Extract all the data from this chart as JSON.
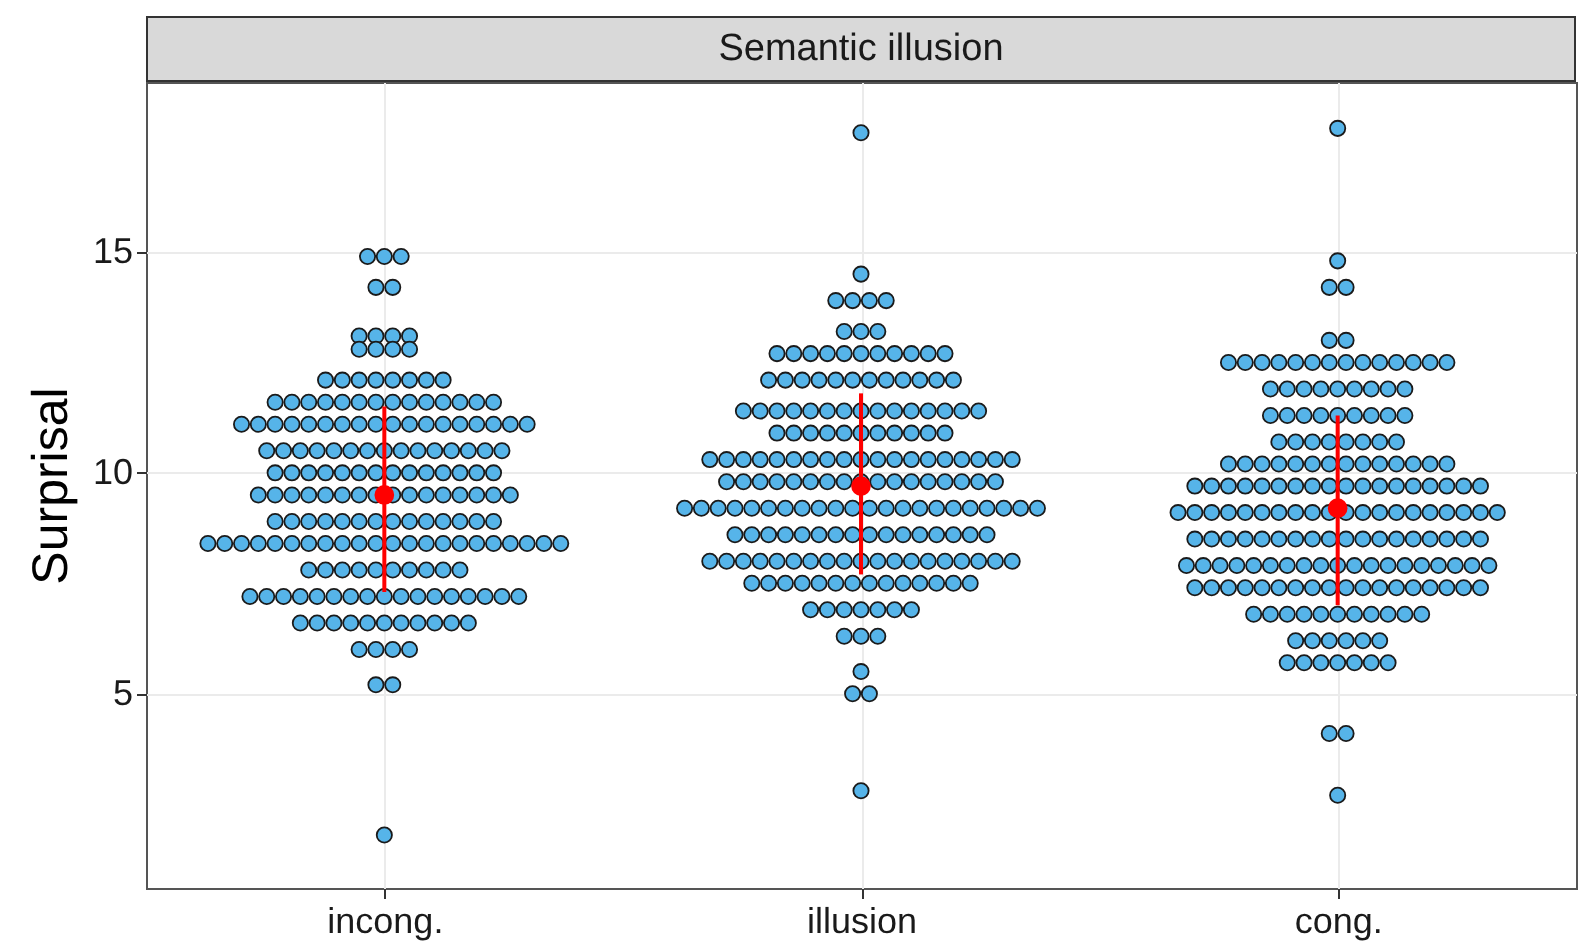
{
  "chart_data": {
    "type": "scatter",
    "title": "Semantic illusion",
    "ylabel": "Surprisal",
    "categories": [
      "incong.",
      "illusion",
      "cong."
    ],
    "ylim": [
      0.6,
      18.85
    ],
    "yticks": [
      5,
      10,
      15
    ],
    "grid": true,
    "marker": "circle",
    "series": [
      {
        "color": "#56b4e9",
        "x": [
          "incong.",
          "incong.",
          "incong.",
          "incong.",
          "incong.",
          "incong.",
          "incong.",
          "incong.",
          "incong.",
          "incong.",
          "incong.",
          "incong.",
          "incong.",
          "incong.",
          "incong.",
          "incong.",
          "incong.",
          "incong.",
          "incong.",
          "incong.",
          "incong.",
          "incong.",
          "incong.",
          "incong.",
          "incong.",
          "incong.",
          "incong.",
          "incong.",
          "incong.",
          "incong.",
          "incong.",
          "incong.",
          "incong.",
          "incong.",
          "incong.",
          "incong.",
          "incong.",
          "incong.",
          "incong.",
          "incong.",
          "incong.",
          "incong.",
          "incong.",
          "incong.",
          "incong.",
          "incong.",
          "incong.",
          "incong.",
          "incong.",
          "incong.",
          "incong.",
          "incong.",
          "incong.",
          "incong.",
          "incong.",
          "incong.",
          "incong.",
          "incong.",
          "incong.",
          "incong.",
          "incong.",
          "incong.",
          "incong.",
          "incong.",
          "incong.",
          "incong.",
          "incong.",
          "incong.",
          "incong.",
          "incong.",
          "incong.",
          "incong.",
          "incong.",
          "incong.",
          "incong.",
          "incong.",
          "incong.",
          "incong.",
          "incong.",
          "incong.",
          "incong.",
          "incong.",
          "incong.",
          "incong.",
          "incong.",
          "incong.",
          "incong.",
          "incong.",
          "incong.",
          "incong.",
          "incong.",
          "incong.",
          "incong.",
          "incong.",
          "incong.",
          "incong.",
          "incong.",
          "incong.",
          "incong.",
          "incong.",
          "incong.",
          "incong.",
          "incong.",
          "incong.",
          "incong.",
          "incong.",
          "incong.",
          "incong.",
          "incong.",
          "incong.",
          "incong.",
          "incong.",
          "incong.",
          "incong.",
          "incong.",
          "incong.",
          "incong.",
          "incong.",
          "incong.",
          "incong.",
          "incong.",
          "incong.",
          "incong.",
          "incong.",
          "incong.",
          "incong.",
          "incong.",
          "incong.",
          "incong.",
          "incong.",
          "incong.",
          "incong.",
          "incong.",
          "incong.",
          "incong.",
          "incong.",
          "incong.",
          "incong.",
          "incong.",
          "incong.",
          "incong.",
          "incong.",
          "incong.",
          "incong.",
          "incong.",
          "incong.",
          "incong.",
          "incong.",
          "incong.",
          "incong.",
          "incong.",
          "incong.",
          "incong.",
          "incong.",
          "incong.",
          "incong.",
          "incong.",
          "incong.",
          "incong.",
          "incong.",
          "incong.",
          "incong.",
          "incong.",
          "incong.",
          "incong.",
          "incong.",
          "incong.",
          "incong.",
          "incong.",
          "incong.",
          "incong.",
          "incong.",
          "incong.",
          "incong.",
          "incong.",
          "incong.",
          "incong.",
          "incong.",
          "incong."
        ],
        "values": [
          14.9,
          14.9,
          14.9,
          14.2,
          14.2,
          13.1,
          13.1,
          13.1,
          13.1,
          12.8,
          12.8,
          12.8,
          12.8,
          12.1,
          12.1,
          12.1,
          12.1,
          12.1,
          12.1,
          12.1,
          12.1,
          11.6,
          11.6,
          11.6,
          11.6,
          11.6,
          11.6,
          11.6,
          11.6,
          11.6,
          11.6,
          11.6,
          11.6,
          11.6,
          11.6,
          11.1,
          11.1,
          11.1,
          11.1,
          11.1,
          11.1,
          11.1,
          11.1,
          11.1,
          11.1,
          11.1,
          11.1,
          11.1,
          11.1,
          11.1,
          11.1,
          11.1,
          11.1,
          10.5,
          10.5,
          10.5,
          10.5,
          10.5,
          10.5,
          10.5,
          10.5,
          10.5,
          10.5,
          10.5,
          10.5,
          10.5,
          10.5,
          10.5,
          10.0,
          10.0,
          10.0,
          10.0,
          10.0,
          10.0,
          10.0,
          10.0,
          10.0,
          10.0,
          10.0,
          10.0,
          10.0,
          10.0,
          9.5,
          9.5,
          9.5,
          9.5,
          9.5,
          9.5,
          9.5,
          9.5,
          9.5,
          9.5,
          9.5,
          9.5,
          9.5,
          9.5,
          9.5,
          9.5,
          8.9,
          8.9,
          8.9,
          8.9,
          8.9,
          8.9,
          8.9,
          8.9,
          8.9,
          8.9,
          8.9,
          8.9,
          8.9,
          8.9,
          8.4,
          8.4,
          8.4,
          8.4,
          8.4,
          8.4,
          8.4,
          8.4,
          8.4,
          8.4,
          8.4,
          8.4,
          8.4,
          8.4,
          8.4,
          8.4,
          8.4,
          8.4,
          8.4,
          8.4,
          8.4,
          8.4,
          7.8,
          7.8,
          7.8,
          7.8,
          7.8,
          7.8,
          7.8,
          7.8,
          7.8,
          7.8,
          7.2,
          7.2,
          7.2,
          7.2,
          7.2,
          7.2,
          7.2,
          7.2,
          7.2,
          7.2,
          7.2,
          7.2,
          7.2,
          7.2,
          7.2,
          7.2,
          7.2,
          6.6,
          6.6,
          6.6,
          6.6,
          6.6,
          6.6,
          6.6,
          6.6,
          6.6,
          6.6,
          6.6,
          6.0,
          6.0,
          6.0,
          6.0,
          5.2,
          5.2,
          1.8
        ]
      },
      {
        "color": "#56b4e9",
        "x": [
          "illusion",
          "illusion",
          "illusion",
          "illusion",
          "illusion",
          "illusion",
          "illusion",
          "illusion",
          "illusion",
          "illusion",
          "illusion",
          "illusion",
          "illusion",
          "illusion",
          "illusion",
          "illusion",
          "illusion",
          "illusion",
          "illusion",
          "illusion",
          "illusion",
          "illusion",
          "illusion",
          "illusion",
          "illusion",
          "illusion",
          "illusion",
          "illusion",
          "illusion",
          "illusion",
          "illusion",
          "illusion",
          "illusion",
          "illusion",
          "illusion",
          "illusion",
          "illusion",
          "illusion",
          "illusion",
          "illusion",
          "illusion",
          "illusion",
          "illusion",
          "illusion",
          "illusion",
          "illusion",
          "illusion",
          "illusion",
          "illusion",
          "illusion",
          "illusion",
          "illusion",
          "illusion",
          "illusion",
          "illusion",
          "illusion",
          "illusion",
          "illusion",
          "illusion",
          "illusion",
          "illusion",
          "illusion",
          "illusion",
          "illusion",
          "illusion",
          "illusion",
          "illusion",
          "illusion",
          "illusion",
          "illusion",
          "illusion",
          "illusion",
          "illusion",
          "illusion",
          "illusion",
          "illusion",
          "illusion",
          "illusion",
          "illusion",
          "illusion",
          "illusion",
          "illusion",
          "illusion",
          "illusion",
          "illusion",
          "illusion",
          "illusion",
          "illusion",
          "illusion",
          "illusion",
          "illusion",
          "illusion",
          "illusion",
          "illusion",
          "illusion",
          "illusion",
          "illusion",
          "illusion",
          "illusion",
          "illusion",
          "illusion",
          "illusion",
          "illusion",
          "illusion",
          "illusion",
          "illusion",
          "illusion",
          "illusion",
          "illusion",
          "illusion",
          "illusion",
          "illusion",
          "illusion",
          "illusion",
          "illusion",
          "illusion",
          "illusion",
          "illusion",
          "illusion",
          "illusion",
          "illusion",
          "illusion",
          "illusion",
          "illusion",
          "illusion",
          "illusion",
          "illusion",
          "illusion",
          "illusion",
          "illusion",
          "illusion",
          "illusion",
          "illusion",
          "illusion",
          "illusion",
          "illusion",
          "illusion",
          "illusion",
          "illusion",
          "illusion",
          "illusion",
          "illusion",
          "illusion",
          "illusion",
          "illusion",
          "illusion",
          "illusion",
          "illusion",
          "illusion",
          "illusion",
          "illusion",
          "illusion",
          "illusion",
          "illusion",
          "illusion",
          "illusion",
          "illusion",
          "illusion",
          "illusion",
          "illusion",
          "illusion",
          "illusion",
          "illusion",
          "illusion",
          "illusion",
          "illusion",
          "illusion",
          "illusion",
          "illusion",
          "illusion",
          "illusion",
          "illusion",
          "illusion",
          "illusion",
          "illusion",
          "illusion",
          "illusion",
          "illusion",
          "illusion"
        ],
        "values": [
          17.7,
          14.5,
          13.9,
          13.9,
          13.9,
          13.9,
          13.2,
          13.2,
          13.2,
          12.7,
          12.7,
          12.7,
          12.7,
          12.7,
          12.7,
          12.7,
          12.7,
          12.7,
          12.7,
          12.7,
          12.1,
          12.1,
          12.1,
          12.1,
          12.1,
          12.1,
          12.1,
          12.1,
          12.1,
          12.1,
          12.1,
          12.1,
          11.4,
          11.4,
          11.4,
          11.4,
          11.4,
          11.4,
          11.4,
          11.4,
          11.4,
          11.4,
          11.4,
          11.4,
          11.4,
          11.4,
          11.4,
          10.9,
          10.9,
          10.9,
          10.9,
          10.9,
          10.9,
          10.9,
          10.9,
          10.9,
          10.9,
          10.9,
          10.3,
          10.3,
          10.3,
          10.3,
          10.3,
          10.3,
          10.3,
          10.3,
          10.3,
          10.3,
          10.3,
          10.3,
          10.3,
          10.3,
          10.3,
          10.3,
          10.3,
          10.3,
          10.3,
          9.8,
          9.8,
          9.8,
          9.8,
          9.8,
          9.8,
          9.8,
          9.8,
          9.8,
          9.8,
          9.8,
          9.8,
          9.8,
          9.8,
          9.8,
          9.8,
          9.8,
          9.2,
          9.2,
          9.2,
          9.2,
          9.2,
          9.2,
          9.2,
          9.2,
          9.2,
          9.2,
          9.2,
          9.2,
          9.2,
          9.2,
          9.2,
          9.2,
          9.2,
          9.2,
          9.2,
          9.2,
          9.2,
          9.2,
          8.6,
          8.6,
          8.6,
          8.6,
          8.6,
          8.6,
          8.6,
          8.6,
          8.6,
          8.6,
          8.6,
          8.6,
          8.6,
          8.6,
          8.6,
          8.6,
          8.0,
          8.0,
          8.0,
          8.0,
          8.0,
          8.0,
          8.0,
          8.0,
          8.0,
          8.0,
          8.0,
          8.0,
          8.0,
          8.0,
          8.0,
          8.0,
          8.0,
          8.0,
          8.0,
          7.5,
          7.5,
          7.5,
          7.5,
          7.5,
          7.5,
          7.5,
          7.5,
          7.5,
          7.5,
          7.5,
          7.5,
          7.5,
          7.5,
          6.9,
          6.9,
          6.9,
          6.9,
          6.9,
          6.9,
          6.9,
          6.3,
          6.3,
          6.3,
          5.5,
          5.0,
          5.0,
          2.8
        ]
      },
      {
        "color": "#56b4e9",
        "x": [
          "cong.",
          "cong.",
          "cong.",
          "cong.",
          "cong.",
          "cong.",
          "cong.",
          "cong.",
          "cong.",
          "cong.",
          "cong.",
          "cong.",
          "cong.",
          "cong.",
          "cong.",
          "cong.",
          "cong.",
          "cong.",
          "cong.",
          "cong.",
          "cong.",
          "cong.",
          "cong.",
          "cong.",
          "cong.",
          "cong.",
          "cong.",
          "cong.",
          "cong.",
          "cong.",
          "cong.",
          "cong.",
          "cong.",
          "cong.",
          "cong.",
          "cong.",
          "cong.",
          "cong.",
          "cong.",
          "cong.",
          "cong.",
          "cong.",
          "cong.",
          "cong.",
          "cong.",
          "cong.",
          "cong.",
          "cong.",
          "cong.",
          "cong.",
          "cong.",
          "cong.",
          "cong.",
          "cong.",
          "cong.",
          "cong.",
          "cong.",
          "cong.",
          "cong.",
          "cong.",
          "cong.",
          "cong.",
          "cong.",
          "cong.",
          "cong.",
          "cong.",
          "cong.",
          "cong.",
          "cong.",
          "cong.",
          "cong.",
          "cong.",
          "cong.",
          "cong.",
          "cong.",
          "cong.",
          "cong.",
          "cong.",
          "cong.",
          "cong.",
          "cong.",
          "cong.",
          "cong.",
          "cong.",
          "cong.",
          "cong.",
          "cong.",
          "cong.",
          "cong.",
          "cong.",
          "cong.",
          "cong.",
          "cong.",
          "cong.",
          "cong.",
          "cong.",
          "cong.",
          "cong.",
          "cong.",
          "cong.",
          "cong.",
          "cong.",
          "cong.",
          "cong.",
          "cong.",
          "cong.",
          "cong.",
          "cong.",
          "cong.",
          "cong.",
          "cong.",
          "cong.",
          "cong.",
          "cong.",
          "cong.",
          "cong.",
          "cong.",
          "cong.",
          "cong.",
          "cong.",
          "cong.",
          "cong.",
          "cong.",
          "cong.",
          "cong.",
          "cong.",
          "cong.",
          "cong.",
          "cong.",
          "cong.",
          "cong.",
          "cong.",
          "cong.",
          "cong.",
          "cong.",
          "cong.",
          "cong.",
          "cong.",
          "cong.",
          "cong.",
          "cong.",
          "cong.",
          "cong.",
          "cong.",
          "cong.",
          "cong.",
          "cong.",
          "cong.",
          "cong.",
          "cong.",
          "cong.",
          "cong.",
          "cong.",
          "cong.",
          "cong.",
          "cong.",
          "cong.",
          "cong.",
          "cong.",
          "cong.",
          "cong.",
          "cong.",
          "cong.",
          "cong.",
          "cong.",
          "cong.",
          "cong.",
          "cong.",
          "cong.",
          "cong.",
          "cong.",
          "cong.",
          "cong.",
          "cong.",
          "cong.",
          "cong.",
          "cong.",
          "cong.",
          "cong.",
          "cong."
        ],
        "values": [
          17.8,
          14.8,
          14.2,
          14.2,
          13.0,
          13.0,
          12.5,
          12.5,
          12.5,
          12.5,
          12.5,
          12.5,
          12.5,
          12.5,
          12.5,
          12.5,
          12.5,
          12.5,
          12.5,
          12.5,
          11.9,
          11.9,
          11.9,
          11.9,
          11.9,
          11.9,
          11.9,
          11.9,
          11.9,
          11.3,
          11.3,
          11.3,
          11.3,
          11.3,
          11.3,
          11.3,
          11.3,
          11.3,
          10.7,
          10.7,
          10.7,
          10.7,
          10.7,
          10.7,
          10.7,
          10.7,
          10.2,
          10.2,
          10.2,
          10.2,
          10.2,
          10.2,
          10.2,
          10.2,
          10.2,
          10.2,
          10.2,
          10.2,
          10.2,
          10.2,
          9.7,
          9.7,
          9.7,
          9.7,
          9.7,
          9.7,
          9.7,
          9.7,
          9.7,
          9.7,
          9.7,
          9.7,
          9.7,
          9.7,
          9.7,
          9.7,
          9.7,
          9.7,
          9.1,
          9.1,
          9.1,
          9.1,
          9.1,
          9.1,
          9.1,
          9.1,
          9.1,
          9.1,
          9.1,
          9.1,
          9.1,
          9.1,
          9.1,
          9.1,
          9.1,
          9.1,
          9.1,
          9.1,
          8.5,
          8.5,
          8.5,
          8.5,
          8.5,
          8.5,
          8.5,
          8.5,
          8.5,
          8.5,
          8.5,
          8.5,
          8.5,
          8.5,
          8.5,
          8.5,
          8.5,
          8.5,
          7.9,
          7.9,
          7.9,
          7.9,
          7.9,
          7.9,
          7.9,
          7.9,
          7.9,
          7.9,
          7.9,
          7.9,
          7.9,
          7.9,
          7.9,
          7.9,
          7.9,
          7.9,
          7.9,
          7.4,
          7.4,
          7.4,
          7.4,
          7.4,
          7.4,
          7.4,
          7.4,
          7.4,
          7.4,
          7.4,
          7.4,
          7.4,
          7.4,
          7.4,
          7.4,
          7.4,
          7.4,
          6.8,
          6.8,
          6.8,
          6.8,
          6.8,
          6.8,
          6.8,
          6.8,
          6.8,
          6.8,
          6.8,
          6.2,
          6.2,
          6.2,
          6.2,
          6.2,
          6.2,
          5.7,
          5.7,
          5.7,
          5.7,
          5.7,
          5.7,
          5.7,
          4.1,
          4.1,
          2.7
        ]
      },
      {
        "color": "#ff0000",
        "x": [
          "incong.",
          "illusion",
          "cong."
        ],
        "values": [
          9.5,
          9.7,
          9.2
        ],
        "errors": [
          [
            7.3,
            11.5
          ],
          [
            7.7,
            11.8
          ],
          [
            7.0,
            11.3
          ]
        ]
      }
    ]
  }
}
